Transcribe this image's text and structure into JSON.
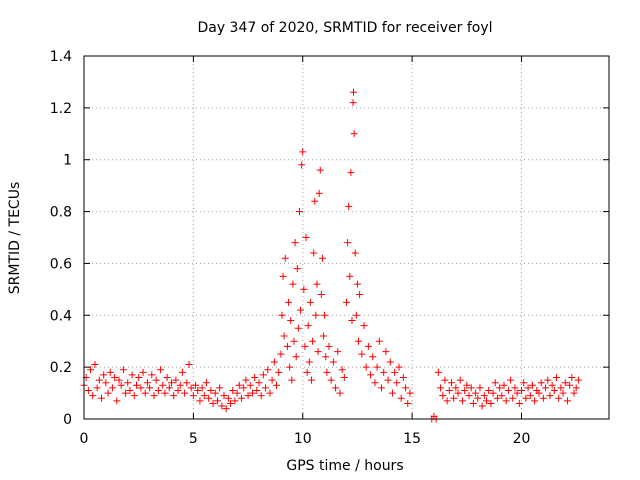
{
  "chart_data": {
    "type": "scatter",
    "title": "Day 347 of 2020, SRMTID for receiver foyl",
    "xlabel": "GPS time / hours",
    "ylabel": "SRMTID / TECUs",
    "xlim": [
      0,
      24
    ],
    "ylim": [
      0,
      1.4
    ],
    "x_ticks": [
      0,
      5,
      10,
      15,
      20
    ],
    "x_tick_labels": [
      "0",
      "5",
      "10",
      "15",
      "20"
    ],
    "y_ticks": [
      0,
      0.2,
      0.4,
      0.6,
      0.8,
      1,
      1.2,
      1.4
    ],
    "y_tick_labels": [
      "0",
      "0.2",
      "0.4",
      "0.6",
      "0.8",
      "1",
      "1.2",
      "1.4"
    ],
    "grid": true,
    "marker": "+",
    "color": "#ff0000",
    "series": [
      {
        "name": "SRMTID",
        "points": [
          [
            0.0,
            0.13
          ],
          [
            0.1,
            0.16
          ],
          [
            0.2,
            0.11
          ],
          [
            0.3,
            0.19
          ],
          [
            0.4,
            0.09
          ],
          [
            0.5,
            0.21
          ],
          [
            0.6,
            0.12
          ],
          [
            0.7,
            0.15
          ],
          [
            0.8,
            0.08
          ],
          [
            0.9,
            0.17
          ],
          [
            1.0,
            0.14
          ],
          [
            1.1,
            0.1
          ],
          [
            1.2,
            0.18
          ],
          [
            1.3,
            0.12
          ],
          [
            1.4,
            0.16
          ],
          [
            1.5,
            0.07
          ],
          [
            1.6,
            0.15
          ],
          [
            1.7,
            0.13
          ],
          [
            1.8,
            0.19
          ],
          [
            1.9,
            0.1
          ],
          [
            2.0,
            0.14
          ],
          [
            2.1,
            0.11
          ],
          [
            2.2,
            0.17
          ],
          [
            2.3,
            0.09
          ],
          [
            2.4,
            0.13
          ],
          [
            2.5,
            0.16
          ],
          [
            2.6,
            0.12
          ],
          [
            2.7,
            0.18
          ],
          [
            2.8,
            0.1
          ],
          [
            2.9,
            0.14
          ],
          [
            3.0,
            0.12
          ],
          [
            3.1,
            0.17
          ],
          [
            3.2,
            0.09
          ],
          [
            3.3,
            0.15
          ],
          [
            3.4,
            0.11
          ],
          [
            3.5,
            0.19
          ],
          [
            3.6,
            0.13
          ],
          [
            3.7,
            0.1
          ],
          [
            3.8,
            0.16
          ],
          [
            3.9,
            0.12
          ],
          [
            4.0,
            0.14
          ],
          [
            4.1,
            0.09
          ],
          [
            4.2,
            0.15
          ],
          [
            4.3,
            0.11
          ],
          [
            4.4,
            0.13
          ],
          [
            4.5,
            0.18
          ],
          [
            4.6,
            0.1
          ],
          [
            4.7,
            0.14
          ],
          [
            4.8,
            0.21
          ],
          [
            4.9,
            0.12
          ],
          [
            5.0,
            0.09
          ],
          [
            5.1,
            0.13
          ],
          [
            5.2,
            0.11
          ],
          [
            5.3,
            0.07
          ],
          [
            5.4,
            0.12
          ],
          [
            5.5,
            0.09
          ],
          [
            5.6,
            0.14
          ],
          [
            5.7,
            0.08
          ],
          [
            5.8,
            0.11
          ],
          [
            5.9,
            0.06
          ],
          [
            6.0,
            0.1
          ],
          [
            6.1,
            0.07
          ],
          [
            6.2,
            0.12
          ],
          [
            6.3,
            0.05
          ],
          [
            6.4,
            0.09
          ],
          [
            6.5,
            0.04
          ],
          [
            6.6,
            0.08
          ],
          [
            6.7,
            0.06
          ],
          [
            6.8,
            0.11
          ],
          [
            6.9,
            0.07
          ],
          [
            7.0,
            0.1
          ],
          [
            7.1,
            0.13
          ],
          [
            7.2,
            0.08
          ],
          [
            7.3,
            0.12
          ],
          [
            7.4,
            0.15
          ],
          [
            7.5,
            0.09
          ],
          [
            7.6,
            0.13
          ],
          [
            7.7,
            0.1
          ],
          [
            7.8,
            0.16
          ],
          [
            7.9,
            0.11
          ],
          [
            8.0,
            0.14
          ],
          [
            8.1,
            0.09
          ],
          [
            8.2,
            0.17
          ],
          [
            8.3,
            0.12
          ],
          [
            8.4,
            0.19
          ],
          [
            8.5,
            0.1
          ],
          [
            8.6,
            0.15
          ],
          [
            8.7,
            0.22
          ],
          [
            8.8,
            0.13
          ],
          [
            8.9,
            0.18
          ],
          [
            9.0,
            0.25
          ],
          [
            9.05,
            0.4
          ],
          [
            9.1,
            0.55
          ],
          [
            9.15,
            0.32
          ],
          [
            9.2,
            0.62
          ],
          [
            9.3,
            0.28
          ],
          [
            9.35,
            0.45
          ],
          [
            9.4,
            0.2
          ],
          [
            9.45,
            0.38
          ],
          [
            9.5,
            0.15
          ],
          [
            9.55,
            0.52
          ],
          [
            9.6,
            0.3
          ],
          [
            9.65,
            0.68
          ],
          [
            9.7,
            0.24
          ],
          [
            9.75,
            0.58
          ],
          [
            9.8,
            0.35
          ],
          [
            9.85,
            0.8
          ],
          [
            9.9,
            0.42
          ],
          [
            9.95,
            0.98
          ],
          [
            10.0,
            1.03
          ],
          [
            10.05,
            0.5
          ],
          [
            10.1,
            0.28
          ],
          [
            10.15,
            0.7
          ],
          [
            10.2,
            0.18
          ],
          [
            10.25,
            0.36
          ],
          [
            10.3,
            0.22
          ],
          [
            10.35,
            0.45
          ],
          [
            10.4,
            0.15
          ],
          [
            10.45,
            0.3
          ],
          [
            10.5,
            0.64
          ],
          [
            10.55,
            0.84
          ],
          [
            10.6,
            0.4
          ],
          [
            10.65,
            0.52
          ],
          [
            10.7,
            0.26
          ],
          [
            10.75,
            0.87
          ],
          [
            10.8,
            0.96
          ],
          [
            10.85,
            0.48
          ],
          [
            10.9,
            0.62
          ],
          [
            10.95,
            0.32
          ],
          [
            11.0,
            0.4
          ],
          [
            11.05,
            0.24
          ],
          [
            11.1,
            0.18
          ],
          [
            11.2,
            0.28
          ],
          [
            11.3,
            0.15
          ],
          [
            11.4,
            0.22
          ],
          [
            11.5,
            0.12
          ],
          [
            11.6,
            0.26
          ],
          [
            11.7,
            0.1
          ],
          [
            11.8,
            0.19
          ],
          [
            11.9,
            0.16
          ],
          [
            12.0,
            0.45
          ],
          [
            12.05,
            0.68
          ],
          [
            12.1,
            0.82
          ],
          [
            12.15,
            0.55
          ],
          [
            12.2,
            0.95
          ],
          [
            12.25,
            0.38
          ],
          [
            12.3,
            1.22
          ],
          [
            12.32,
            1.26
          ],
          [
            12.35,
            1.1
          ],
          [
            12.4,
            0.64
          ],
          [
            12.45,
            0.4
          ],
          [
            12.5,
            0.52
          ],
          [
            12.55,
            0.3
          ],
          [
            12.6,
            0.48
          ],
          [
            12.7,
            0.25
          ],
          [
            12.8,
            0.36
          ],
          [
            12.9,
            0.2
          ],
          [
            13.0,
            0.28
          ],
          [
            13.1,
            0.17
          ],
          [
            13.2,
            0.24
          ],
          [
            13.3,
            0.14
          ],
          [
            13.4,
            0.2
          ],
          [
            13.5,
            0.3
          ],
          [
            13.6,
            0.12
          ],
          [
            13.7,
            0.18
          ],
          [
            13.8,
            0.26
          ],
          [
            13.9,
            0.15
          ],
          [
            14.0,
            0.22
          ],
          [
            14.1,
            0.1
          ],
          [
            14.2,
            0.18
          ],
          [
            14.3,
            0.14
          ],
          [
            14.4,
            0.2
          ],
          [
            14.5,
            0.08
          ],
          [
            14.6,
            0.16
          ],
          [
            14.7,
            0.12
          ],
          [
            14.8,
            0.06
          ],
          [
            14.9,
            0.1
          ],
          [
            15.9,
            0.0
          ],
          [
            16.0,
            0.01
          ],
          [
            16.1,
            0.0
          ],
          [
            16.2,
            0.18
          ],
          [
            16.3,
            0.12
          ],
          [
            16.4,
            0.09
          ],
          [
            16.5,
            0.15
          ],
          [
            16.6,
            0.07
          ],
          [
            16.7,
            0.11
          ],
          [
            16.8,
            0.14
          ],
          [
            16.9,
            0.08
          ],
          [
            17.0,
            0.12
          ],
          [
            17.1,
            0.1
          ],
          [
            17.2,
            0.15
          ],
          [
            17.3,
            0.07
          ],
          [
            17.4,
            0.11
          ],
          [
            17.5,
            0.13
          ],
          [
            17.6,
            0.09
          ],
          [
            17.7,
            0.12
          ],
          [
            17.8,
            0.06
          ],
          [
            17.9,
            0.1
          ],
          [
            18.0,
            0.08
          ],
          [
            18.1,
            0.12
          ],
          [
            18.2,
            0.05
          ],
          [
            18.3,
            0.09
          ],
          [
            18.4,
            0.07
          ],
          [
            18.5,
            0.11
          ],
          [
            18.6,
            0.06
          ],
          [
            18.7,
            0.1
          ],
          [
            18.8,
            0.14
          ],
          [
            18.9,
            0.08
          ],
          [
            19.0,
            0.12
          ],
          [
            19.1,
            0.09
          ],
          [
            19.2,
            0.13
          ],
          [
            19.3,
            0.07
          ],
          [
            19.4,
            0.11
          ],
          [
            19.5,
            0.15
          ],
          [
            19.6,
            0.08
          ],
          [
            19.7,
            0.12
          ],
          [
            19.8,
            0.1
          ],
          [
            19.9,
            0.06
          ],
          [
            20.0,
            0.11
          ],
          [
            20.1,
            0.14
          ],
          [
            20.2,
            0.08
          ],
          [
            20.3,
            0.12
          ],
          [
            20.4,
            0.09
          ],
          [
            20.5,
            0.13
          ],
          [
            20.6,
            0.07
          ],
          [
            20.7,
            0.11
          ],
          [
            20.8,
            0.1
          ],
          [
            20.9,
            0.14
          ],
          [
            21.0,
            0.08
          ],
          [
            21.1,
            0.12
          ],
          [
            21.2,
            0.15
          ],
          [
            21.3,
            0.09
          ],
          [
            21.4,
            0.13
          ],
          [
            21.5,
            0.11
          ],
          [
            21.6,
            0.16
          ],
          [
            21.7,
            0.08
          ],
          [
            21.8,
            0.12
          ],
          [
            21.9,
            0.1
          ],
          [
            22.0,
            0.14
          ],
          [
            22.1,
            0.07
          ],
          [
            22.2,
            0.13
          ],
          [
            22.3,
            0.16
          ],
          [
            22.4,
            0.1
          ],
          [
            22.5,
            0.12
          ],
          [
            22.6,
            0.15
          ]
        ]
      }
    ]
  }
}
